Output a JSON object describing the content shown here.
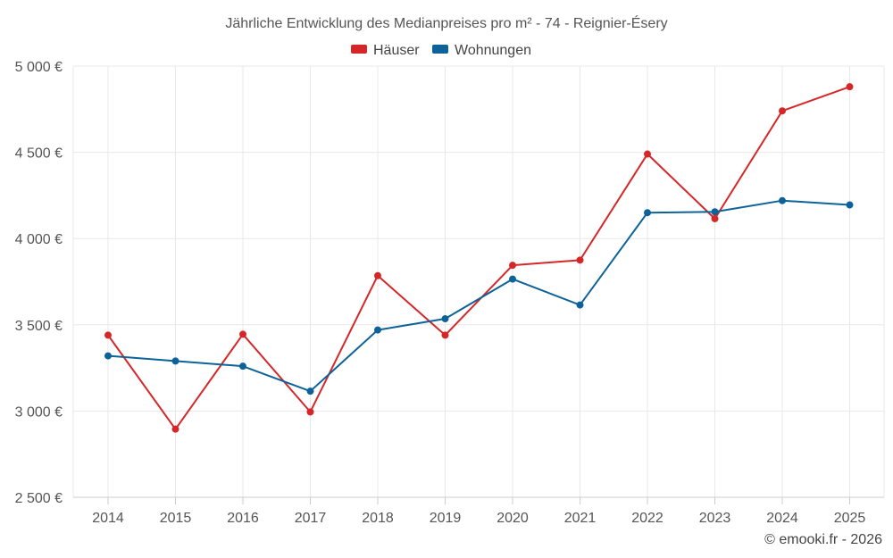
{
  "chart_data": {
    "type": "line",
    "title": "Jährliche Entwicklung des Medianpreises pro m² - 74 - Reignier-Ésery",
    "categories": [
      "2014",
      "2015",
      "2016",
      "2017",
      "2018",
      "2019",
      "2020",
      "2021",
      "2022",
      "2023",
      "2024",
      "2025"
    ],
    "series": [
      {
        "name": "Häuser",
        "color": "#d62728",
        "values": [
          3440,
          2895,
          3445,
          2995,
          3785,
          3440,
          3845,
          3875,
          4490,
          4115,
          4740,
          4880
        ]
      },
      {
        "name": "Wohnungen",
        "color": "#0d6399",
        "values": [
          3320,
          3290,
          3260,
          3115,
          3470,
          3535,
          3765,
          3615,
          4150,
          4155,
          4220,
          4195
        ]
      }
    ],
    "y_ticks": [
      2500,
      3000,
      3500,
      4000,
      4500,
      5000
    ],
    "y_tick_labels": [
      "2 500 €",
      "3 000 €",
      "3 500 €",
      "4 000 €",
      "4 500 €",
      "5 000 €"
    ],
    "ylim": [
      2500,
      5000
    ],
    "xlabel": "",
    "ylabel": "",
    "grid": true,
    "legend_position": "top-center"
  },
  "credit": "© emooki.fr - 2026"
}
